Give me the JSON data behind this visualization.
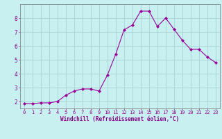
{
  "x": [
    0,
    1,
    2,
    3,
    4,
    5,
    6,
    7,
    8,
    9,
    10,
    11,
    12,
    13,
    14,
    15,
    16,
    17,
    18,
    19,
    20,
    21,
    22,
    23
  ],
  "y": [
    1.85,
    1.85,
    1.9,
    1.9,
    2.0,
    2.45,
    2.75,
    2.9,
    2.9,
    2.75,
    3.9,
    5.4,
    7.15,
    7.5,
    8.5,
    8.5,
    7.4,
    8.0,
    7.2,
    6.4,
    5.75,
    5.75,
    5.2,
    4.8
  ],
  "line_color": "#990099",
  "marker": "D",
  "marker_size": 2.0,
  "bg_color": "#c8f0f0",
  "grid_color": "#aad8d8",
  "axis_color": "#888888",
  "xlabel": "Windchill (Refroidissement éolien,°C)",
  "ylabel": "",
  "ylim": [
    1.5,
    9.0
  ],
  "xlim": [
    -0.5,
    23.5
  ],
  "yticks": [
    2,
    3,
    4,
    5,
    6,
    7,
    8
  ],
  "xticks": [
    0,
    1,
    2,
    3,
    4,
    5,
    6,
    7,
    8,
    9,
    10,
    11,
    12,
    13,
    14,
    15,
    16,
    17,
    18,
    19,
    20,
    21,
    22,
    23
  ],
  "font_color": "#880088",
  "tick_fontsize": 5.0,
  "xlabel_fontsize": 5.5,
  "xlabel_fontweight": "bold"
}
